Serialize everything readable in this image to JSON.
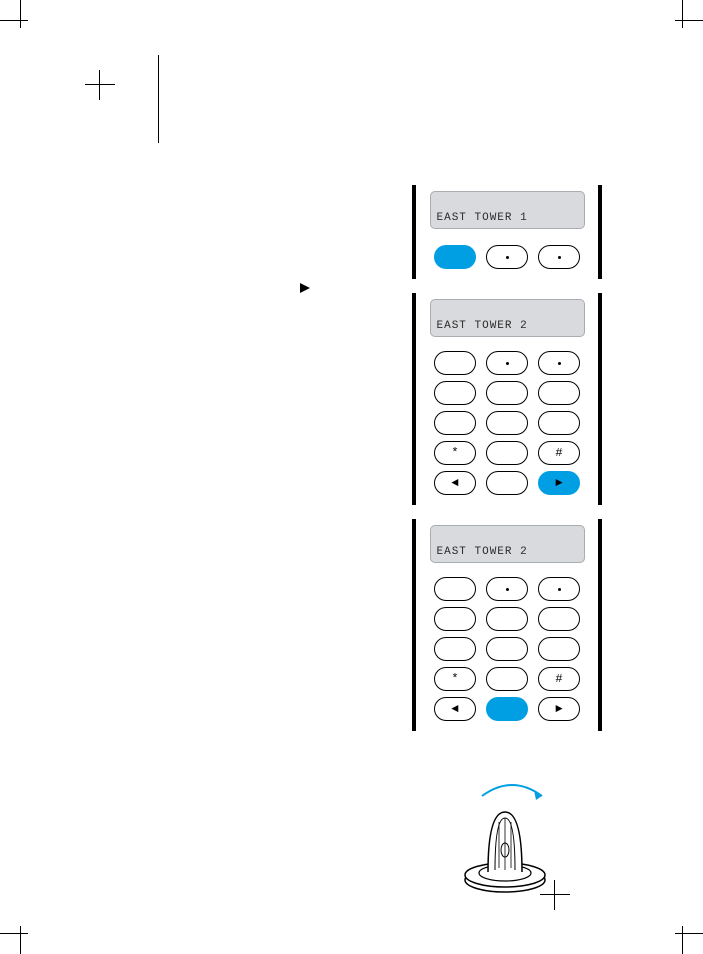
{
  "colors": {
    "accent": "#009fe3",
    "lcd_bg": "#d9dadd",
    "lcd_border": "#a9acb0",
    "lcd_text": "#2b2b2b",
    "stroke": "#000000",
    "page_bg": "#ffffff"
  },
  "panels": [
    {
      "lcd_text": "EAST TOWER 1",
      "soft_buttons": [
        {
          "style": "blue",
          "glyph": ""
        },
        {
          "style": "plain",
          "glyph": "dot"
        },
        {
          "style": "plain",
          "glyph": "dot"
        }
      ]
    },
    {
      "lcd_text": "EAST TOWER 2",
      "keypad": {
        "rows": [
          [
            {
              "glyph": ""
            },
            {
              "glyph": "dot"
            },
            {
              "glyph": "dot"
            }
          ],
          [
            {
              "glyph": ""
            },
            {
              "glyph": ""
            },
            {
              "glyph": ""
            }
          ],
          [
            {
              "glyph": ""
            },
            {
              "glyph": ""
            },
            {
              "glyph": ""
            }
          ],
          [
            {
              "glyph": "*"
            },
            {
              "glyph": ""
            },
            {
              "glyph": "#"
            }
          ],
          [
            {
              "glyph": "◄"
            },
            {
              "glyph": ""
            },
            {
              "glyph": "►",
              "style": "blue"
            }
          ]
        ]
      }
    },
    {
      "lcd_text": "EAST TOWER 2",
      "keypad": {
        "rows": [
          [
            {
              "glyph": ""
            },
            {
              "glyph": "dot"
            },
            {
              "glyph": "dot"
            }
          ],
          [
            {
              "glyph": ""
            },
            {
              "glyph": ""
            },
            {
              "glyph": ""
            }
          ],
          [
            {
              "glyph": ""
            },
            {
              "glyph": ""
            },
            {
              "glyph": ""
            }
          ],
          [
            {
              "glyph": "*"
            },
            {
              "glyph": ""
            },
            {
              "glyph": "#"
            }
          ],
          [
            {
              "glyph": "◄"
            },
            {
              "glyph": "",
              "style": "blue"
            },
            {
              "glyph": "►"
            }
          ]
        ]
      }
    }
  ]
}
